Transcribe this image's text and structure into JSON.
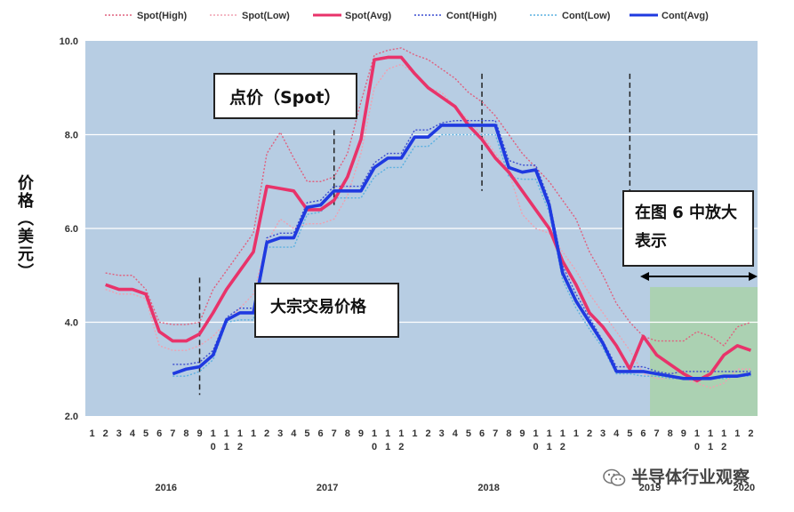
{
  "chart_data": {
    "type": "line",
    "ylabel": "价格（美元）",
    "ylim": [
      2.0,
      10.0
    ],
    "yticks": [
      "2.0",
      "4.0",
      "6.0",
      "8.0",
      "10.0"
    ],
    "x_month_labels": [
      "1",
      "2",
      "3",
      "4",
      "5",
      "6",
      "7",
      "8",
      "9",
      "10",
      "11",
      "12",
      "1",
      "2",
      "3",
      "4",
      "5",
      "6",
      "7",
      "8",
      "9",
      "10",
      "11",
      "12",
      "1",
      "2",
      "3",
      "4",
      "5",
      "6",
      "7",
      "8",
      "9",
      "10",
      "11",
      "12",
      "1",
      "2",
      "3",
      "4",
      "5",
      "6",
      "7",
      "8",
      "9",
      "10",
      "11",
      "12",
      "1",
      "2"
    ],
    "x_year_labels": [
      {
        "label": "2016",
        "month_index": 6
      },
      {
        "label": "2017",
        "month_index": 18
      },
      {
        "label": "2018",
        "month_index": 30
      },
      {
        "label": "2019",
        "month_index": 42
      },
      {
        "label": "2020",
        "month_index": 49
      }
    ],
    "grid": true,
    "legend_position": "top",
    "highlight_region": {
      "from_month_index": 42,
      "to_month_index": 50
    },
    "series": [
      {
        "name": "Spot(High)",
        "style": "dotted",
        "color": "#e0607e",
        "x": [
          2,
          3,
          4,
          5,
          6,
          7,
          8,
          9,
          10,
          11,
          12,
          13,
          14,
          15,
          16,
          17,
          18,
          19,
          20,
          21,
          22,
          23,
          24,
          25,
          26,
          27,
          28,
          29,
          30,
          31,
          32,
          33,
          34,
          35,
          36,
          37,
          38,
          39,
          40,
          41,
          42,
          43,
          44,
          45,
          46,
          47,
          48,
          49,
          50
        ],
        "values": [
          5.05,
          5.0,
          5.0,
          4.7,
          4.0,
          3.95,
          3.95,
          4.0,
          4.7,
          5.1,
          5.5,
          5.9,
          7.6,
          8.05,
          7.5,
          7.0,
          7.0,
          7.1,
          7.6,
          8.7,
          9.7,
          9.8,
          9.85,
          9.7,
          9.6,
          9.4,
          9.2,
          8.9,
          8.7,
          8.4,
          8.0,
          7.6,
          7.3,
          7.0,
          6.6,
          6.2,
          5.5,
          5.0,
          4.4,
          4.0,
          3.7,
          3.6,
          3.6,
          3.6,
          3.8,
          3.7,
          3.5,
          3.9,
          4.0
        ]
      },
      {
        "name": "Spot(Low)",
        "style": "dotted",
        "color": "#f0a0b0",
        "x": [
          2,
          3,
          4,
          5,
          6,
          7,
          8,
          9,
          10,
          11,
          12,
          13,
          14,
          15,
          16,
          17,
          18,
          19,
          20,
          21,
          22,
          23,
          24,
          25,
          26,
          27,
          28,
          29,
          30,
          31,
          32,
          33,
          34,
          35,
          36,
          37,
          38,
          39,
          40,
          41,
          42,
          43,
          44,
          45,
          46,
          47,
          48,
          49,
          50
        ],
        "values": [
          4.7,
          4.6,
          4.6,
          4.5,
          3.5,
          3.4,
          3.4,
          3.5,
          3.7,
          4.0,
          4.3,
          4.6,
          5.7,
          6.2,
          6.0,
          6.1,
          6.1,
          6.2,
          6.7,
          7.6,
          9.0,
          9.4,
          9.5,
          9.3,
          9.0,
          8.9,
          8.6,
          8.3,
          8.0,
          7.6,
          7.2,
          6.3,
          6.0,
          5.9,
          5.5,
          5.1,
          4.6,
          4.2,
          3.8,
          3.4,
          2.9,
          2.8,
          2.8,
          2.8,
          2.7,
          2.6,
          2.7,
          3.0,
          3.0
        ]
      },
      {
        "name": "Spot(Avg)",
        "style": "solid",
        "color": "#e8336a",
        "x": [
          2,
          3,
          4,
          5,
          6,
          7,
          8,
          9,
          10,
          11,
          12,
          13,
          14,
          15,
          16,
          17,
          18,
          19,
          20,
          21,
          22,
          23,
          24,
          25,
          26,
          27,
          28,
          29,
          30,
          31,
          32,
          33,
          34,
          35,
          36,
          37,
          38,
          39,
          40,
          41,
          42,
          43,
          44,
          45,
          46,
          47,
          48,
          49,
          50
        ],
        "values": [
          4.8,
          4.7,
          4.7,
          4.6,
          3.8,
          3.6,
          3.6,
          3.75,
          4.2,
          4.7,
          5.1,
          5.5,
          6.9,
          6.85,
          6.8,
          6.4,
          6.4,
          6.6,
          7.1,
          7.9,
          9.6,
          9.65,
          9.65,
          9.3,
          9.0,
          8.8,
          8.6,
          8.2,
          7.9,
          7.5,
          7.2,
          6.8,
          6.4,
          6.0,
          5.3,
          4.8,
          4.2,
          3.9,
          3.5,
          3.0,
          3.7,
          3.3,
          3.1,
          2.9,
          2.75,
          2.9,
          3.3,
          3.5,
          3.4
        ]
      },
      {
        "name": "Cont(High)",
        "style": "dotted",
        "color": "#3a4bd0",
        "x": [
          7,
          8,
          9,
          10,
          11,
          12,
          13,
          14,
          15,
          16,
          17,
          18,
          19,
          20,
          21,
          22,
          23,
          24,
          25,
          26,
          27,
          28,
          29,
          30,
          31,
          32,
          33,
          34,
          35,
          36,
          37,
          38,
          39,
          40,
          41,
          42,
          43,
          44,
          45,
          46,
          47,
          48,
          49,
          50
        ],
        "values": [
          3.1,
          3.1,
          3.15,
          3.4,
          4.1,
          4.3,
          4.3,
          5.8,
          5.9,
          5.9,
          6.55,
          6.6,
          6.9,
          6.9,
          6.9,
          7.4,
          7.6,
          7.6,
          8.1,
          8.1,
          8.25,
          8.3,
          8.3,
          8.3,
          8.3,
          7.45,
          7.35,
          7.35,
          6.6,
          5.2,
          4.6,
          4.1,
          3.6,
          3.05,
          3.05,
          3.05,
          2.95,
          2.9,
          2.95,
          2.95,
          2.95,
          2.95,
          2.95,
          2.95
        ]
      },
      {
        "name": "Cont(Low)",
        "style": "dotted",
        "color": "#5ab0e0",
        "x": [
          7,
          8,
          9,
          10,
          11,
          12,
          13,
          14,
          15,
          16,
          17,
          18,
          19,
          20,
          21,
          22,
          23,
          24,
          25,
          26,
          27,
          28,
          29,
          30,
          31,
          32,
          33,
          34,
          35,
          36,
          37,
          38,
          39,
          40,
          41,
          42,
          43,
          44,
          45,
          46,
          47,
          48,
          49,
          50
        ],
        "values": [
          2.85,
          2.85,
          2.95,
          3.2,
          4.0,
          4.05,
          4.05,
          5.6,
          5.6,
          5.6,
          6.3,
          6.35,
          6.65,
          6.65,
          6.65,
          7.1,
          7.3,
          7.3,
          7.75,
          7.75,
          8.0,
          8.0,
          8.0,
          8.0,
          8.0,
          7.1,
          7.05,
          7.05,
          6.35,
          4.9,
          4.3,
          3.85,
          3.45,
          2.9,
          2.9,
          2.85,
          2.85,
          2.8,
          2.8,
          2.8,
          2.8,
          2.8,
          2.85,
          2.85
        ]
      },
      {
        "name": "Cont(Avg)",
        "style": "solid",
        "color": "#1f3ae0",
        "x": [
          7,
          8,
          9,
          10,
          11,
          12,
          13,
          14,
          15,
          16,
          17,
          18,
          19,
          20,
          21,
          22,
          23,
          24,
          25,
          26,
          27,
          28,
          29,
          30,
          31,
          32,
          33,
          34,
          35,
          36,
          37,
          38,
          39,
          40,
          41,
          42,
          43,
          44,
          45,
          46,
          47,
          48,
          49,
          50
        ],
        "values": [
          2.9,
          3.0,
          3.05,
          3.3,
          4.05,
          4.2,
          4.2,
          5.7,
          5.8,
          5.8,
          6.45,
          6.5,
          6.8,
          6.8,
          6.8,
          7.3,
          7.5,
          7.5,
          7.95,
          7.95,
          8.2,
          8.2,
          8.2,
          8.2,
          8.2,
          7.3,
          7.2,
          7.25,
          6.5,
          5.05,
          4.45,
          4.0,
          3.55,
          2.95,
          2.95,
          2.95,
          2.9,
          2.85,
          2.8,
          2.8,
          2.8,
          2.85,
          2.85,
          2.9
        ]
      }
    ],
    "annotations": {
      "spot_label": "点价（Spot）",
      "contract_label": "大宗交易价格",
      "zoom_label": "在图 6 中放大表示"
    }
  },
  "watermark": "半导体行业观察",
  "colors": {
    "plot_background": "#b7cde3",
    "highlight_region": "#a9d1a9",
    "gridline": "#ffffff"
  }
}
